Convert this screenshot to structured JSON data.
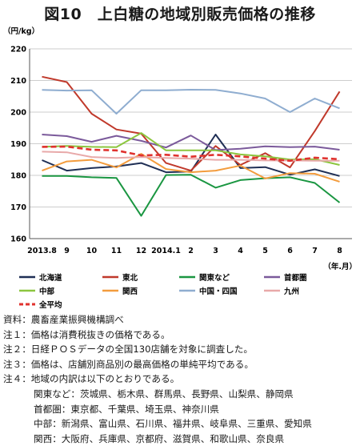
{
  "title": "図10　上白糖の地域別販売価格の推移",
  "chart_data": {
    "type": "line",
    "ylabel": "（円/kg）",
    "xlabel": "（年.月）",
    "ylim": [
      160,
      220
    ],
    "yticks": [
      160,
      170,
      180,
      190,
      200,
      210,
      220
    ],
    "grid": "horizontal",
    "legend_position": "bottom",
    "categories": [
      "2013.8",
      "9",
      "10",
      "11",
      "12",
      "2014.1",
      "2",
      "3",
      "4",
      "5",
      "6",
      "7",
      "8"
    ],
    "series": [
      {
        "name": "北海道",
        "color": "#1f2f55",
        "dash": "solid",
        "values": [
          184.8,
          181.5,
          182.3,
          182.8,
          183.9,
          181.0,
          181.2,
          192.9,
          182.3,
          182.6,
          180.2,
          181.9,
          179.8
        ]
      },
      {
        "name": "東北",
        "color": "#c0392b",
        "dash": "solid",
        "values": [
          211.2,
          209.5,
          199.5,
          194.5,
          193.2,
          183.9,
          181.5,
          189.3,
          183.3,
          187.0,
          182.5,
          194.0,
          206.5
        ]
      },
      {
        "name": "関東など",
        "color": "#1a9641",
        "dash": "solid",
        "values": [
          179.8,
          179.8,
          179.4,
          179.2,
          167.2,
          180.1,
          180.2,
          176.1,
          178.5,
          179.1,
          179.4,
          177.6,
          171.4
        ]
      },
      {
        "name": "首都圏",
        "color": "#7b5a9b",
        "dash": "solid",
        "values": [
          192.9,
          192.4,
          190.6,
          192.5,
          190.9,
          188.8,
          192.6,
          188.0,
          188.4,
          189.2,
          188.9,
          189.1,
          188.1
        ]
      },
      {
        "name": "中部",
        "color": "#8cc63f",
        "dash": "solid",
        "values": [
          189.0,
          189.3,
          189.0,
          188.9,
          193.4,
          187.9,
          187.9,
          187.9,
          186.6,
          186.0,
          185.0,
          185.1,
          183.3
        ]
      },
      {
        "name": "関西",
        "color": "#f39c3d",
        "dash": "solid",
        "values": [
          181.5,
          184.4,
          184.9,
          182.5,
          186.8,
          182.0,
          181.0,
          181.5,
          183.1,
          179.0,
          180.7,
          180.5,
          178.0
        ]
      },
      {
        "name": "中国・四国",
        "color": "#8fadd0",
        "dash": "solid",
        "values": [
          207.0,
          206.8,
          206.9,
          199.5,
          206.9,
          206.9,
          207.1,
          207.0,
          205.9,
          204.3,
          200.0,
          204.3,
          201.2
        ]
      },
      {
        "name": "九州",
        "color": "#e8a9a9",
        "dash": "solid",
        "values": [
          187.5,
          187.3,
          185.8,
          185.5,
          185.8,
          185.5,
          185.3,
          184.9,
          184.9,
          184.7,
          184.7,
          184.6,
          184.6
        ]
      },
      {
        "name": "全平均",
        "color": "#e0322e",
        "dash": "dashed",
        "values": [
          189.0,
          189.1,
          188.1,
          187.9,
          186.3,
          186.5,
          185.9,
          186.5,
          186.0,
          185.3,
          184.6,
          185.6,
          185.1
        ]
      }
    ]
  },
  "notes": {
    "source": "資料：農畜産業振興機構調べ",
    "note1": "注１：価格は消費税抜きの価格である。",
    "note2": "注２：日経ＰＯＳデータの全国130店舗を対象に調査した。",
    "note3": "注３：価格は、店舗別商品別の最高価格の単純平均である。",
    "note4": "注４：地域の内訳は以下のとおりである。",
    "kanto": "関東など：茨城県、栃木県、群馬県、長野県、山梨県、静岡県",
    "shutoken": "首都圏：東京都、千葉県、埼玉県、神奈川県",
    "chubu": "中部：新潟県、富山県、石川県、福井県、岐阜県、三重県、愛知県",
    "kansai": "関西：大阪府、兵庫県、京都府、滋賀県、和歌山県、奈良県"
  }
}
